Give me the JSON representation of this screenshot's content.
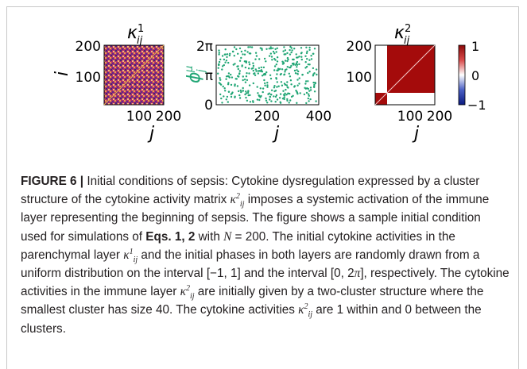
{
  "panels": [
    {
      "title_sym": "κ",
      "title_sup": "1",
      "title_sub": "ij",
      "ylabel": "i",
      "xlabel": "j",
      "yticks": [
        "200",
        "100"
      ],
      "xticks": [
        "100",
        "200"
      ]
    },
    {
      "ylabel_sym": "ϕ",
      "ylabel_sup": "μ",
      "ylabel_sub": "j",
      "xlabel": "j",
      "yticks": [
        "2π",
        "π",
        "0"
      ],
      "xticks": [
        "200",
        "400"
      ]
    },
    {
      "title_sym": "κ",
      "title_sup": "2",
      "title_sub": "ij",
      "xlabel": "j",
      "yticks": [
        "200",
        "100"
      ],
      "xticks": [
        "100",
        "200"
      ],
      "colorbar_ticks": [
        "1",
        "0",
        "−1"
      ]
    }
  ],
  "caption": {
    "label": "FIGURE 6 |",
    "t1": " Initial conditions of sepsis: Cytokine dysregulation expressed by a cluster structure of the cytokine activity matrix ",
    "k": "κ",
    "sup2": "2",
    "sup1": "1",
    "subij": "ij",
    "t2": " imposes a systemic activation of the immune layer representing the beginning of sepsis. The figure shows a sample initial condition used for simulations of ",
    "eqs": "Eqs. 1, 2",
    "t3": " with ",
    "N": "N",
    "t4": " = 200. The initial cytokine activities in the parenchymal layer ",
    "t5": " and the initial phases in both layers are randomly drawn from a uniform distribution on the interval [−1, 1] and the interval [0, 2",
    "pi": "π",
    "t6": "], respectively. The cytokine activities in the immune layer ",
    "t7": " are initially given by a two-cluster structure where the smallest cluster has size 40. The cytokine activities ",
    "t8": " are 1 within and 0 between the clusters."
  },
  "colors": {
    "noise_base": "#b0306a",
    "dots": "#21a675",
    "dark_red": "#a40b0b",
    "white": "#ffffff"
  }
}
